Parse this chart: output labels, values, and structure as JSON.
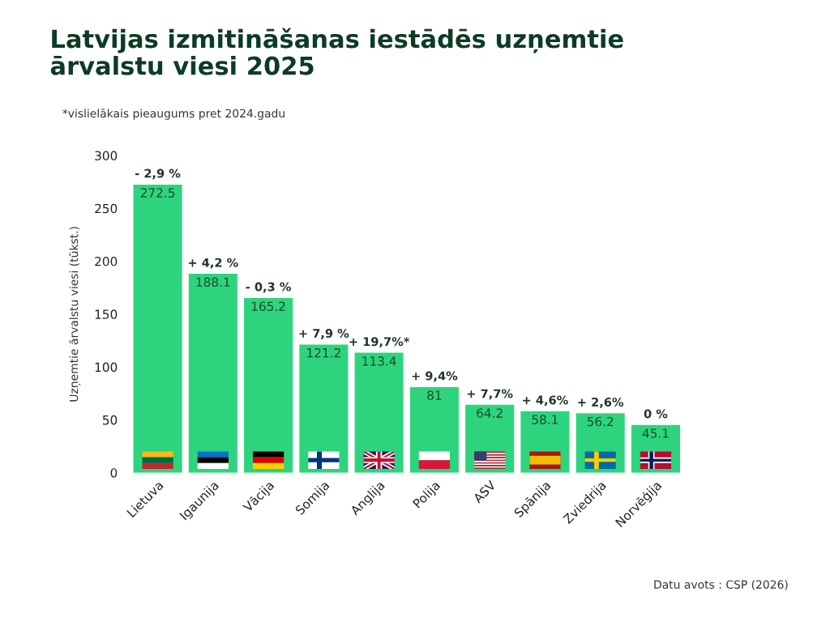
{
  "chart_data": {
    "type": "bar",
    "title": "Latvijas izmitināšanas iestādēs uzņemtie\nārvalstu viesi 2025",
    "subtitle": "*vislielākais pieaugums pret 2024.gadu",
    "ylabel": "Uzņemtie ārvalstu viesi (tūkst.)",
    "categories": [
      "Lietuva",
      "Igaunija",
      "Vācija",
      "Somija",
      "Anglija",
      "Polija",
      "ASV",
      "Spānija",
      "Zviedrija",
      "Norvēģija"
    ],
    "values": [
      272.5,
      188.1,
      165.2,
      121.2,
      113.4,
      81,
      64.2,
      58.1,
      56.2,
      45.1
    ],
    "color": "#2ed47d",
    "ylim": [
      0,
      300
    ],
    "yticks": [
      0,
      50,
      100,
      150,
      200,
      250,
      300
    ],
    "data_labels": true,
    "annotations": [
      {
        "text": "- 2,9 %",
        "x": "Lietuva",
        "y": 272.5
      },
      {
        "text": "+ 4,2 %",
        "x": "Igaunija",
        "y": 188.1
      },
      {
        "text": "- 0,3 %",
        "x": "Vācija",
        "y": 165.2
      },
      {
        "text": "+ 7,9 %",
        "x": "Somija",
        "y": 121.2
      },
      {
        "text": "+ 19,7%*",
        "x": "Anglija",
        "y": 113.4
      },
      {
        "text": "+ 9,4%",
        "x": "Polija",
        "y": 81
      },
      {
        "text": "+ 7,7%",
        "x": "ASV",
        "y": 64.2
      },
      {
        "text": "+ 4,6%",
        "x": "Spānija",
        "y": 58.1
      },
      {
        "text": "+ 2,6%",
        "x": "Zviedrija",
        "y": 56.2
      },
      {
        "text": "0 %",
        "x": "Norvēģija",
        "y": 45.1
      },
      "Datu avots : CSP (2026)"
    ]
  }
}
